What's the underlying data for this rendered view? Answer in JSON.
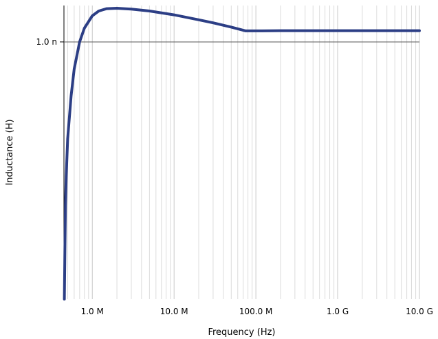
{
  "chart_data": {
    "type": "line",
    "xlabel": "Frequency (Hz)",
    "ylabel": "Inductance (H)",
    "x_scale": "log",
    "y_scale": "log",
    "xlim": [
      450000,
      10000000000
    ],
    "ylim": [
      1.2e-10,
      1.35e-09
    ],
    "grid": true,
    "x_ticks": [
      {
        "value": 1000000,
        "label": "1.0 M"
      },
      {
        "value": 10000000,
        "label": "10.0 M"
      },
      {
        "value": 100000000,
        "label": "100.0 M"
      },
      {
        "value": 1000000000,
        "label": "1.0 G"
      },
      {
        "value": 10000000000,
        "label": "10.0 G"
      }
    ],
    "y_ticks": [
      {
        "value": 1e-09,
        "label": "1.0 n"
      }
    ],
    "series": [
      {
        "color": "#2c3e85",
        "x": [
          455000,
          462000,
          470000,
          480000,
          500000,
          550000,
          600000,
          700000,
          800000,
          1000000,
          1200000,
          1500000,
          2000000,
          3000000,
          5000000,
          10000000,
          20000000,
          30000000,
          50000000,
          75000000,
          100000000,
          200000000,
          500000000,
          1000000000,
          10000000000
        ],
        "y": [
          1.2e-10,
          1.8e-10,
          2.6e-10,
          3.3e-10,
          4.5e-10,
          6.4e-10,
          8e-10,
          1e-09,
          1.12e-09,
          1.24e-09,
          1.29e-09,
          1.315e-09,
          1.32e-09,
          1.31e-09,
          1.29e-09,
          1.25e-09,
          1.2e-09,
          1.17e-09,
          1.13e-09,
          1.095e-09,
          1.095e-09,
          1.097e-09,
          1.097e-09,
          1.097e-09,
          1.097e-09
        ]
      }
    ]
  }
}
